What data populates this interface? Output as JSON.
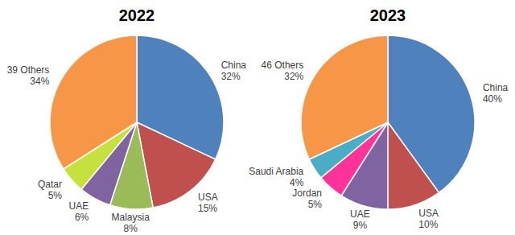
{
  "chart_data": [
    {
      "type": "pie",
      "title": "2022",
      "categories": [
        "China",
        "USA",
        "Malaysia",
        "UAE",
        "Qatar",
        "39 Others"
      ],
      "values": [
        32,
        15,
        8,
        6,
        5,
        34
      ],
      "value_labels": [
        "32%",
        "15%",
        "8%",
        "6%",
        "5%",
        "34%"
      ],
      "colors": [
        "#4f81bd",
        "#c0504d",
        "#9bbb59",
        "#8064a2",
        "#c6e03e",
        "#f79646"
      ],
      "data_labels": true
    },
    {
      "type": "pie",
      "title": "2023",
      "categories": [
        "China",
        "USA",
        "UAE",
        "Jordan",
        "Saudi Arabia",
        "46 Others"
      ],
      "values": [
        40,
        10,
        9,
        5,
        4,
        32
      ],
      "value_labels": [
        "40%",
        "10%",
        "9%",
        "5%",
        "4%",
        "32%"
      ],
      "colors": [
        "#4f81bd",
        "#c0504d",
        "#8064a2",
        "#ff3399",
        "#4bacc6",
        "#f79646"
      ],
      "data_labels": true
    }
  ]
}
